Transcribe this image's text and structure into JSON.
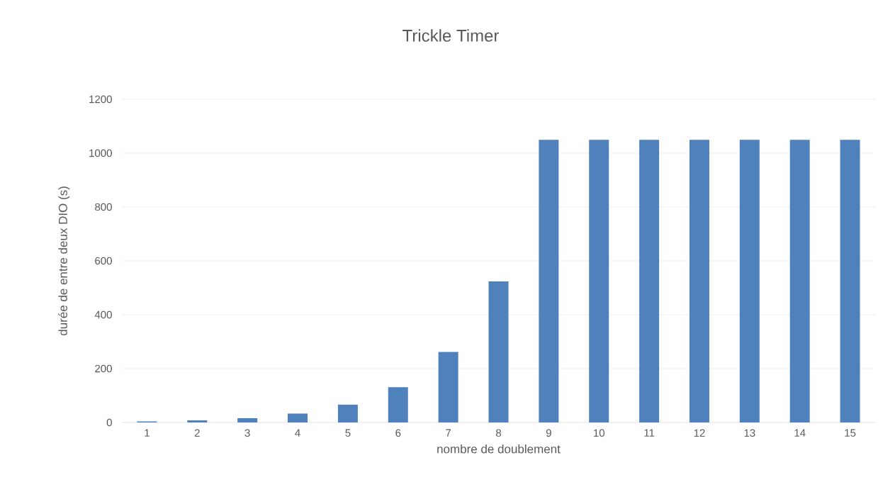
{
  "chart_data": {
    "type": "bar",
    "title": "Trickle Timer",
    "xlabel": "nombre de doublement",
    "ylabel": "durée de entre deux DIO  (s)",
    "categories": [
      "1",
      "2",
      "3",
      "4",
      "5",
      "6",
      "7",
      "8",
      "9",
      "10",
      "11",
      "12",
      "13",
      "14",
      "15"
    ],
    "values": [
      4,
      8,
      16,
      33,
      66,
      131,
      262,
      524,
      1049,
      1049,
      1049,
      1049,
      1049,
      1049,
      1049
    ],
    "color": "#4f81bd",
    "ylim": [
      0,
      1200
    ],
    "yticks": [
      0,
      200,
      400,
      600,
      800,
      1000,
      1200
    ],
    "grid": "y"
  }
}
